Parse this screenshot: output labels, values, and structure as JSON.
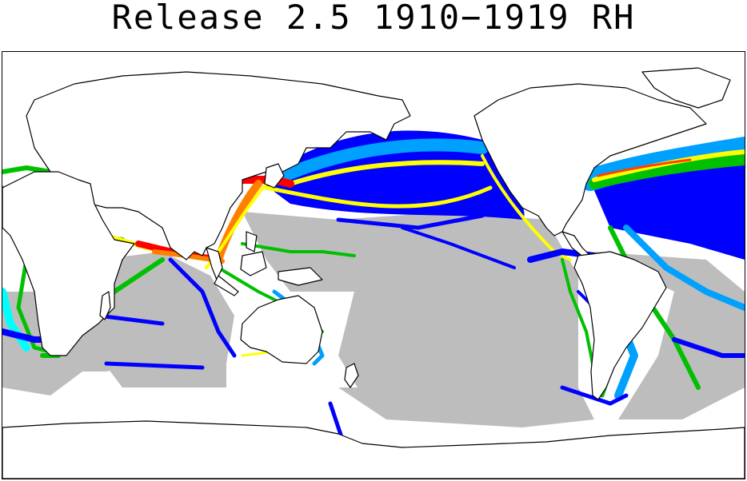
{
  "title": "Release 2.5 1910−1919 RH",
  "colors": {
    "land_fill": "#ffffff",
    "coastline": "#000000",
    "ocean_no_data": "#ffffff",
    "sparse": "#bdbdbd",
    "low": "#0000ff",
    "mid_low": "#00a0ff",
    "mid": "#00ffff",
    "mid_high": "#00c000",
    "high": "#ffff00",
    "very_high": "#ff8000",
    "max": "#ff0000"
  }
}
